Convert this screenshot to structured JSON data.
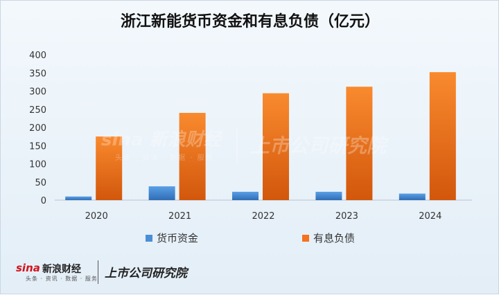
{
  "title": "浙江新能货币资金和有息负债（亿元）",
  "chart_data": {
    "type": "bar",
    "title": "浙江新能货币资金和有息负债（亿元）",
    "categories": [
      "2020",
      "2021",
      "2022",
      "2023",
      "2024"
    ],
    "series": [
      {
        "name": "货币资金",
        "values": [
          10,
          38,
          23,
          23,
          18
        ],
        "color": "#4a8fd6"
      },
      {
        "name": "有息负债",
        "values": [
          175,
          240,
          294,
          312,
          352
        ],
        "color": "#f57220"
      }
    ],
    "ylim": [
      0,
      400
    ],
    "yticks": [
      0,
      50,
      100,
      150,
      200,
      250,
      300,
      350,
      400
    ],
    "xlabel": "",
    "ylabel": "",
    "grid": false,
    "legend": "bottom"
  },
  "watermark": {
    "sina": "sina 新浪财经",
    "sub": "头条 · 资讯 · 数据 · 服务",
    "brand": "上市公司研究院"
  },
  "logo": {
    "sina": "sina",
    "cn": "新浪财经",
    "sub": "头条 · 资讯 · 数据 · 服务",
    "brand": "上市公司研究院"
  }
}
